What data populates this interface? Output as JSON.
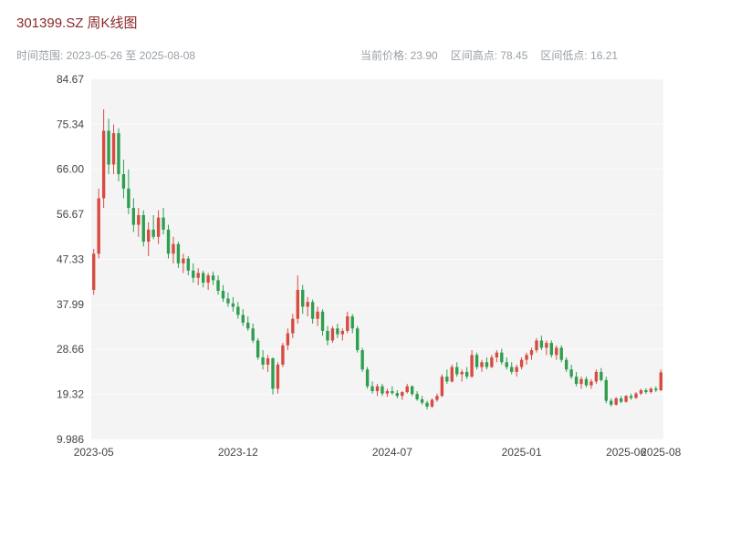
{
  "header": {
    "title": "301399.SZ 周K线图",
    "time_range": "时间范围: 2023-05-26 至 2025-08-08",
    "current_price_label": "当前价格: 23.90",
    "range_high_label": "区间高点: 78.45",
    "range_low_label": "区间低点: 16.21"
  },
  "colors": {
    "title_text": "#8b2727",
    "subtitle_text": "#9aa0a6",
    "axis_text": "#444444",
    "plot_background": "#f4f4f5",
    "up": "#d84b40",
    "down": "#2f9e4f"
  },
  "chart_data": {
    "type": "candlestick",
    "title": "301399.SZ 周K线图",
    "interval": "weekly",
    "date_range": [
      "2023-05-26",
      "2025-08-08"
    ],
    "current_price": 23.9,
    "range_high": 78.45,
    "range_low": 16.21,
    "ylim": [
      9.986,
      84.67
    ],
    "y_tick_labels": [
      "84.67",
      "75.34",
      "66.00",
      "56.67",
      "47.33",
      "37.99",
      "28.66",
      "19.32",
      "9.986"
    ],
    "x_ticks": [
      {
        "index": 0,
        "label": "2023-05"
      },
      {
        "index": 29,
        "label": "2023-12"
      },
      {
        "index": 60,
        "label": "2024-07"
      },
      {
        "index": 86,
        "label": "2025-01"
      },
      {
        "index": 107,
        "label": "2025-06"
      },
      {
        "index": 114,
        "label": "2025-08"
      }
    ],
    "up_color": "#d84b40",
    "down_color": "#2f9e4f",
    "candles_format": [
      "open",
      "high",
      "low",
      "close"
    ],
    "candles": [
      [
        41.0,
        49.5,
        40.0,
        48.5
      ],
      [
        48.5,
        62.0,
        47.5,
        60.0
      ],
      [
        60.0,
        78.45,
        58.0,
        74.0
      ],
      [
        74.0,
        76.5,
        65.0,
        67.0
      ],
      [
        67.0,
        75.3,
        65.0,
        73.5
      ],
      [
        73.5,
        74.5,
        63.5,
        65.0
      ],
      [
        65.0,
        68.0,
        60.0,
        62.0
      ],
      [
        62.0,
        66.0,
        56.7,
        58.0
      ],
      [
        58.0,
        60.0,
        53.0,
        54.5
      ],
      [
        54.5,
        58.0,
        52.0,
        56.5
      ],
      [
        56.5,
        57.5,
        50.0,
        51.0
      ],
      [
        51.0,
        55.0,
        48.0,
        53.5
      ],
      [
        53.5,
        56.5,
        51.5,
        52.0
      ],
      [
        52.0,
        57.5,
        50.5,
        56.0
      ],
      [
        56.0,
        58.0,
        52.5,
        53.5
      ],
      [
        53.5,
        54.5,
        47.5,
        48.5
      ],
      [
        48.5,
        52.0,
        46.5,
        50.5
      ],
      [
        50.5,
        51.0,
        45.5,
        46.5
      ],
      [
        46.5,
        48.5,
        44.5,
        47.5
      ],
      [
        47.5,
        48.0,
        44.0,
        45.0
      ],
      [
        45.0,
        46.5,
        42.5,
        43.5
      ],
      [
        43.5,
        45.5,
        42.0,
        44.5
      ],
      [
        44.5,
        45.0,
        41.5,
        42.5
      ],
      [
        42.5,
        44.5,
        41.0,
        44.0
      ],
      [
        44.0,
        44.8,
        42.0,
        43.0
      ],
      [
        43.0,
        44.0,
        40.0,
        40.8
      ],
      [
        40.8,
        42.0,
        38.5,
        39.2
      ],
      [
        39.2,
        40.5,
        37.5,
        38.2
      ],
      [
        38.2,
        39.5,
        36.5,
        37.5
      ],
      [
        37.5,
        38.5,
        35.0,
        35.8
      ],
      [
        35.8,
        37.0,
        33.5,
        34.2
      ],
      [
        34.2,
        35.5,
        32.5,
        33.0
      ],
      [
        33.0,
        34.0,
        30.0,
        30.5
      ],
      [
        30.5,
        31.0,
        26.5,
        27.0
      ],
      [
        27.0,
        28.5,
        24.5,
        25.5
      ],
      [
        25.5,
        27.5,
        24.0,
        26.8
      ],
      [
        26.8,
        27.0,
        19.3,
        20.5
      ],
      [
        20.5,
        26.0,
        19.5,
        25.5
      ],
      [
        25.5,
        30.0,
        25.0,
        29.5
      ],
      [
        29.5,
        33.0,
        28.5,
        32.0
      ],
      [
        32.0,
        36.0,
        31.0,
        35.0
      ],
      [
        35.0,
        44.0,
        34.0,
        41.0
      ],
      [
        41.0,
        42.0,
        36.0,
        37.5
      ],
      [
        37.5,
        39.5,
        35.5,
        38.5
      ],
      [
        38.5,
        39.0,
        34.0,
        35.0
      ],
      [
        35.0,
        37.5,
        33.5,
        36.5
      ],
      [
        36.5,
        37.0,
        31.5,
        32.5
      ],
      [
        32.5,
        33.5,
        29.5,
        30.5
      ],
      [
        30.5,
        33.5,
        30.0,
        33.0
      ],
      [
        33.0,
        34.0,
        31.0,
        31.8
      ],
      [
        31.8,
        33.0,
        30.5,
        32.5
      ],
      [
        32.5,
        36.5,
        32.0,
        35.5
      ],
      [
        35.5,
        36.0,
        32.0,
        33.0
      ],
      [
        33.0,
        33.5,
        28.0,
        28.5
      ],
      [
        28.5,
        29.0,
        24.0,
        24.5
      ],
      [
        24.5,
        25.0,
        20.5,
        21.0
      ],
      [
        21.0,
        22.0,
        19.5,
        20.0
      ],
      [
        20.0,
        21.5,
        19.0,
        21.0
      ],
      [
        21.0,
        21.5,
        19.0,
        19.5
      ],
      [
        19.5,
        20.5,
        18.8,
        20.0
      ],
      [
        20.0,
        21.0,
        19.2,
        19.6
      ],
      [
        19.6,
        20.2,
        18.5,
        19.0
      ],
      [
        19.0,
        20.0,
        18.2,
        19.8
      ],
      [
        19.8,
        21.5,
        19.5,
        21.0
      ],
      [
        21.0,
        21.2,
        19.0,
        19.4
      ],
      [
        19.4,
        20.0,
        18.0,
        18.3
      ],
      [
        18.3,
        19.0,
        17.2,
        17.6
      ],
      [
        17.6,
        18.0,
        16.21,
        16.8
      ],
      [
        16.8,
        18.5,
        16.5,
        18.2
      ],
      [
        18.2,
        19.5,
        17.8,
        19.0
      ],
      [
        19.0,
        23.5,
        18.8,
        23.0
      ],
      [
        23.0,
        24.5,
        21.5,
        22.0
      ],
      [
        22.0,
        25.5,
        21.8,
        25.0
      ],
      [
        25.0,
        26.0,
        23.0,
        23.5
      ],
      [
        23.5,
        24.5,
        22.0,
        24.0
      ],
      [
        24.0,
        25.0,
        22.5,
        23.0
      ],
      [
        23.0,
        28.5,
        22.8,
        27.5
      ],
      [
        27.5,
        28.0,
        24.5,
        25.0
      ],
      [
        25.0,
        26.5,
        24.0,
        26.0
      ],
      [
        26.0,
        27.0,
        24.5,
        25.0
      ],
      [
        25.0,
        27.5,
        24.8,
        27.0
      ],
      [
        27.0,
        28.5,
        26.0,
        28.0
      ],
      [
        28.0,
        28.8,
        25.5,
        26.0
      ],
      [
        26.0,
        27.0,
        24.5,
        25.0
      ],
      [
        25.0,
        26.0,
        23.5,
        24.0
      ],
      [
        24.0,
        25.5,
        23.0,
        25.0
      ],
      [
        25.0,
        27.0,
        24.5,
        26.5
      ],
      [
        26.5,
        28.0,
        25.5,
        27.5
      ],
      [
        27.5,
        29.0,
        26.5,
        28.5
      ],
      [
        28.5,
        31.0,
        28.0,
        30.5
      ],
      [
        30.5,
        31.5,
        28.5,
        29.0
      ],
      [
        29.0,
        30.5,
        27.5,
        30.0
      ],
      [
        30.0,
        30.5,
        27.0,
        27.5
      ],
      [
        27.5,
        29.5,
        26.5,
        29.0
      ],
      [
        29.0,
        29.5,
        26.0,
        26.5
      ],
      [
        26.5,
        27.0,
        24.0,
        24.5
      ],
      [
        24.5,
        25.5,
        22.5,
        23.0
      ],
      [
        23.0,
        24.0,
        21.0,
        21.5
      ],
      [
        21.5,
        23.0,
        20.5,
        22.5
      ],
      [
        22.5,
        23.0,
        20.8,
        21.2
      ],
      [
        21.2,
        22.5,
        20.5,
        22.0
      ],
      [
        22.0,
        24.5,
        21.5,
        24.0
      ],
      [
        24.0,
        24.8,
        22.0,
        22.3
      ],
      [
        22.3,
        23.0,
        17.5,
        18.0
      ],
      [
        18.0,
        18.5,
        16.8,
        17.2
      ],
      [
        17.2,
        18.8,
        17.0,
        18.5
      ],
      [
        18.5,
        19.0,
        17.5,
        17.8
      ],
      [
        17.8,
        19.2,
        17.6,
        19.0
      ],
      [
        19.0,
        19.5,
        18.2,
        18.6
      ],
      [
        18.6,
        19.8,
        18.4,
        19.5
      ],
      [
        19.5,
        20.5,
        19.2,
        20.2
      ],
      [
        20.2,
        20.6,
        19.4,
        19.8
      ],
      [
        19.8,
        20.8,
        19.5,
        20.5
      ],
      [
        20.5,
        21.0,
        19.8,
        20.2
      ],
      [
        20.2,
        24.5,
        20.0,
        23.9
      ]
    ]
  }
}
